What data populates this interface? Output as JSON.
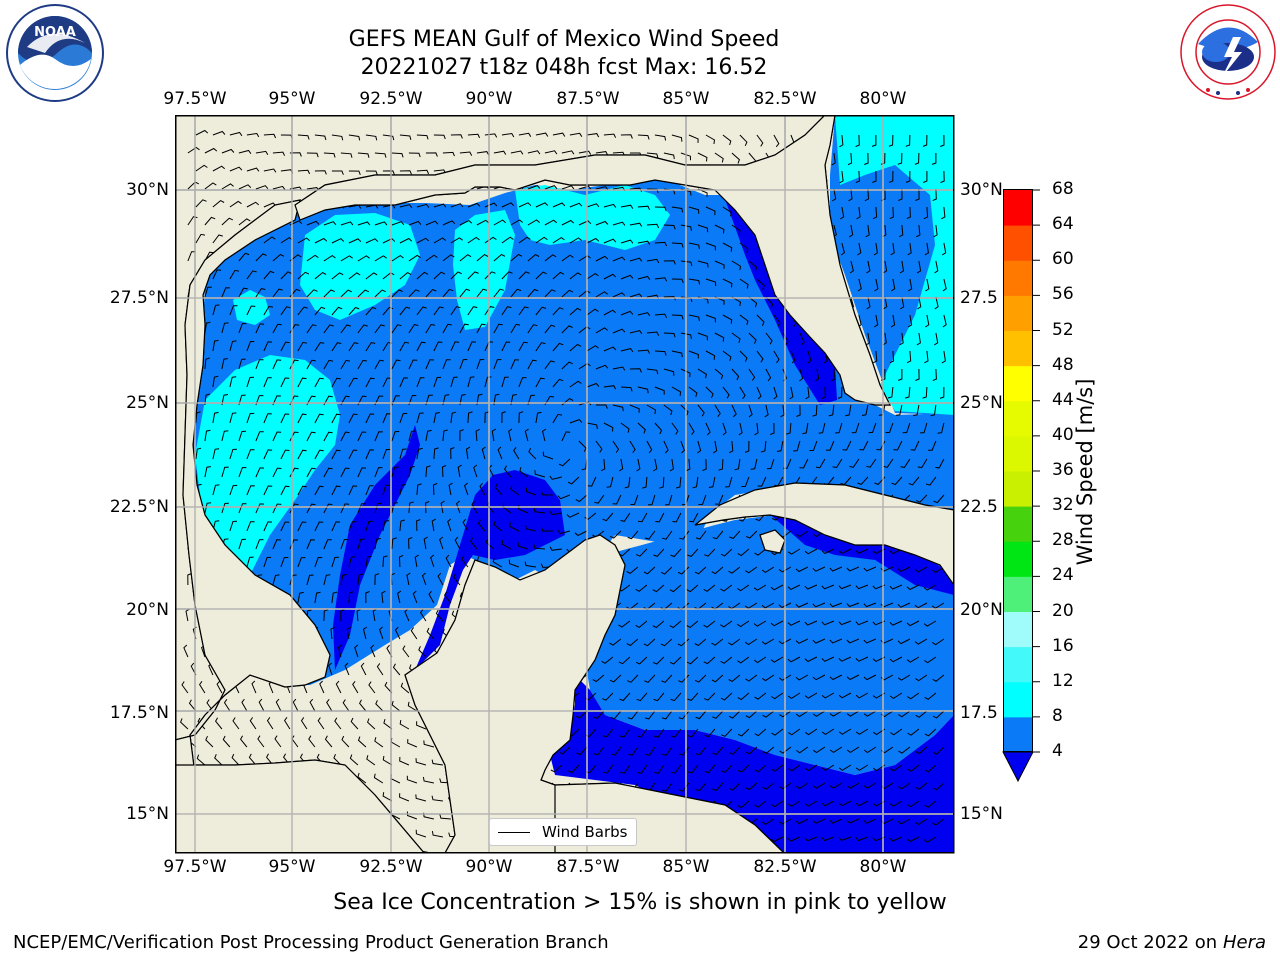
{
  "title": {
    "line1": "GEFS MEAN Gulf of Mexico Wind Speed",
    "line2": "20221027 t18z 048h fcst   Max: 16.52"
  },
  "logos": {
    "noaa_text": "NOAA",
    "noaa_ring_text": "NATIONAL OCEANIC AND ATMOSPHERIC ADMINISTRATION · U.S. DEPARTMENT OF COMMERCE",
    "nws_ring_text": "NATIONAL WEATHER SERVICE"
  },
  "map": {
    "lon_labels": [
      "97.5°W",
      "95°W",
      "92.5°W",
      "90°W",
      "87.5°W",
      "85°W",
      "82.5°W",
      "80°W"
    ],
    "lat_labels_left": [
      "30°N",
      "27.5°N",
      "25°N",
      "22.5°N",
      "20°N",
      "17.5°N",
      "15°N"
    ],
    "lat_labels_right": [
      "30°N",
      "27.5",
      "25°N",
      "22.5",
      "20°N",
      "17.5",
      "15°N"
    ],
    "colors": {
      "land": "#eeeddc",
      "grid": "#b0b0b0"
    }
  },
  "colorbar": {
    "label": "Wind Speed [m/s]",
    "ticks": [
      "4",
      "8",
      "12",
      "16",
      "20",
      "24",
      "28",
      "32",
      "36",
      "40",
      "44",
      "48",
      "52",
      "56",
      "60",
      "64",
      "68"
    ],
    "levels": [
      {
        "from": 4,
        "to": 8,
        "color": "#0a7af7"
      },
      {
        "from": 8,
        "to": 12,
        "color": "#00ffff"
      },
      {
        "from": 12,
        "to": 16,
        "color": "#44f9f9"
      },
      {
        "from": 16,
        "to": 20,
        "color": "#a0fbfb"
      },
      {
        "from": 20,
        "to": 24,
        "color": "#4ef07a"
      },
      {
        "from": 24,
        "to": 28,
        "color": "#00e614"
      },
      {
        "from": 28,
        "to": 32,
        "color": "#46d20c"
      },
      {
        "from": 32,
        "to": 36,
        "color": "#c8f000"
      },
      {
        "from": 36,
        "to": 40,
        "color": "#dcf800"
      },
      {
        "from": 40,
        "to": 44,
        "color": "#e6fa00"
      },
      {
        "from": 44,
        "to": 48,
        "color": "#ffff00"
      },
      {
        "from": 48,
        "to": 52,
        "color": "#ffc000"
      },
      {
        "from": 52,
        "to": 56,
        "color": "#ffa000"
      },
      {
        "from": 56,
        "to": 60,
        "color": "#ff7800"
      },
      {
        "from": 60,
        "to": 64,
        "color": "#ff5000"
      },
      {
        "from": 64,
        "to": 68,
        "color": "#ff0000"
      }
    ],
    "under_color": "#0000f0"
  },
  "fill_colors": {
    "lt4": "#0000f0",
    "c4_8": "#0a7af7",
    "c8_12": "#00ffff",
    "c12_16": "#44f9f9"
  },
  "legend": {
    "label": "Wind Barbs"
  },
  "caption": "Sea Ice Concentration > 15% is shown in pink to yellow",
  "footer": {
    "left": "NCEP/EMC/Verification Post Processing Product Generation Branch",
    "right_prefix": "29 Oct 2022 on ",
    "right_host": "Hera"
  }
}
